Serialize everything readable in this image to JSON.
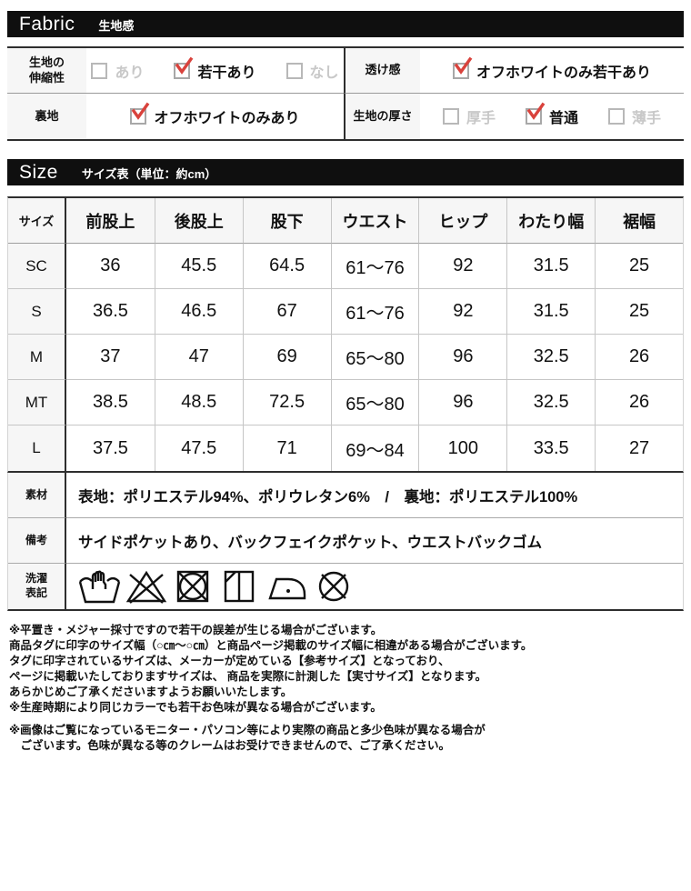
{
  "colors": {
    "bar_bg": "#0f0f0f",
    "label_bg": "#f6f6f6",
    "border_dark": "#2e2e2e",
    "border_light": "#c6c6c6",
    "check_red": "#d9423c",
    "unchecked_text": "#c8c8c8"
  },
  "fabric": {
    "bar": {
      "en": "Fabric",
      "ja": "生地感"
    },
    "rows": [
      {
        "cells": [
          {
            "type": "label",
            "lines": [
              "生地の",
              "伸縮性"
            ]
          },
          {
            "type": "options",
            "options": [
              {
                "text": "あり",
                "checked": false
              },
              {
                "text": "若干あり",
                "checked": true
              },
              {
                "text": "なし",
                "checked": false
              }
            ]
          },
          {
            "type": "label",
            "lines": [
              "透け感"
            ]
          },
          {
            "type": "options",
            "options": [
              {
                "text": "オフホワイトのみ若干あり",
                "checked": true
              }
            ]
          }
        ]
      },
      {
        "cells": [
          {
            "type": "label",
            "lines": [
              "裏地"
            ]
          },
          {
            "type": "options",
            "options": [
              {
                "text": "オフホワイトのみあり",
                "checked": true
              }
            ]
          },
          {
            "type": "label",
            "lines": [
              "生地の厚さ"
            ]
          },
          {
            "type": "options",
            "options": [
              {
                "text": "厚手",
                "checked": false
              },
              {
                "text": "普通",
                "checked": true
              },
              {
                "text": "薄手",
                "checked": false
              }
            ]
          }
        ]
      }
    ]
  },
  "size": {
    "bar": {
      "en": "Size",
      "ja": "サイズ表（単位：約cm）"
    },
    "table": {
      "columns": [
        "サイズ",
        "前股上",
        "後股上",
        "股下",
        "ウエスト",
        "ヒップ",
        "わたり幅",
        "裾幅"
      ],
      "rows": [
        {
          "size": "SC",
          "values": [
            "36",
            "45.5",
            "64.5",
            "61～76",
            "92",
            "31.5",
            "25"
          ]
        },
        {
          "size": "S",
          "values": [
            "36.5",
            "46.5",
            "67",
            "61～76",
            "92",
            "31.5",
            "25"
          ]
        },
        {
          "size": "M",
          "values": [
            "37",
            "47",
            "69",
            "65～80",
            "96",
            "32.5",
            "26"
          ]
        },
        {
          "size": "MT",
          "values": [
            "38.5",
            "48.5",
            "72.5",
            "65～80",
            "96",
            "32.5",
            "26"
          ]
        },
        {
          "size": "L",
          "values": [
            "37.5",
            "47.5",
            "71",
            "69～84",
            "100",
            "33.5",
            "27"
          ]
        }
      ]
    },
    "details": [
      {
        "label_lines": [
          "素材"
        ],
        "type": "text",
        "value": "表地：ポリエステル94%、ポリウレタン6%　/　裏地：ポリエステル100%"
      },
      {
        "label_lines": [
          "備考"
        ],
        "type": "text",
        "value": "サイドポケットあり、バックフェイクポケット、ウエストバックゴム"
      },
      {
        "label_lines": [
          "洗濯",
          "表記"
        ],
        "type": "icons",
        "icons": [
          "hand-wash-icon",
          "do-not-bleach-icon",
          "do-not-tumble-dry-icon",
          "line-dry-in-shade-icon",
          "iron-low-heat-icon",
          "do-not-dry-clean-icon"
        ]
      }
    ]
  },
  "footnotes": [
    "※平置き・メジャー採寸ですので若干の誤差が生じる場合がございます。",
    "商品タグに印字のサイズ幅（○㎝～○㎝）と商品ページ掲載のサイズ幅に相違がある場合がございます。",
    "タグに印字されているサイズは、メーカーが定めている【参考サイズ】となっており、",
    "ページに掲載いたしておりますサイズは、 商品を実際に計測した【実寸サイズ】となります。",
    "あらかじめご了承くださいますようお願いいたします。",
    "※生産時期により同じカラーでも若干お色味が異なる場合がございます。",
    "",
    "※画像はご覧になっているモニター・パソコン等により実際の商品と多少色味が異なる場合が",
    "　ございます。色味が異なる等のクレームはお受けできませんので、ご了承ください。"
  ]
}
